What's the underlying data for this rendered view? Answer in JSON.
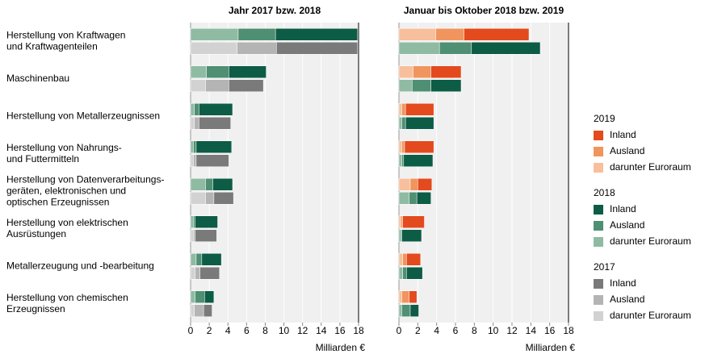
{
  "chart_data": {
    "type": "bar",
    "orientation": "horizontal",
    "stacked": true,
    "xlabel": "Milliarden €",
    "categories": [
      [
        "Herstellung von Kraftwagen",
        "und Kraftwagenteilen"
      ],
      [
        "Maschinenbau"
      ],
      [
        "Herstellung von Metallerzeugnissen"
      ],
      [
        "Herstellung von Nahrungs-",
        "und Futtermitteln"
      ],
      [
        "Herstellung von Datenverarbeitungs-",
        "geräten, elektronischen und",
        "optischen Erzeugnissen"
      ],
      [
        "Herstellung von elektrischen",
        "Ausrüstungen"
      ],
      [
        "Metallerzeugung und -bearbeitung"
      ],
      [
        "Herstellung von chemischen",
        "Erzeugnissen"
      ]
    ],
    "panels": [
      {
        "title": "Jahr 2017 bzw. 2018",
        "xlim": [
          0,
          18
        ],
        "xticks": [
          0,
          2,
          4,
          6,
          8,
          10,
          12,
          14,
          16,
          18
        ],
        "rows": [
          {
            "series": [
              {
                "name": "darunter Euroraum",
                "color": "#8fbba2",
                "values": [
                  5.1,
                  1.7,
                  0.4,
                  0.3,
                  1.6,
                  0.3,
                  0.6,
                  0.5
                ]
              },
              {
                "name": "Ausland",
                "color": "#4f8f73",
                "values": [
                  4.0,
                  2.4,
                  0.5,
                  0.3,
                  0.8,
                  0.2,
                  0.6,
                  1.0
                ]
              },
              {
                "name": "Inland",
                "color": "#0d5c46",
                "values": [
                  8.8,
                  4.0,
                  3.6,
                  3.8,
                  2.1,
                  2.4,
                  2.1,
                  1.0
                ]
              }
            ]
          },
          {
            "series": [
              {
                "name": "darunter Euroraum",
                "color": "#d2d2d2",
                "values": [
                  5.0,
                  1.6,
                  0.4,
                  0.3,
                  1.6,
                  0.3,
                  0.5,
                  0.4
                ]
              },
              {
                "name": "Ausland",
                "color": "#b4b4b4",
                "values": [
                  4.2,
                  2.5,
                  0.5,
                  0.3,
                  0.9,
                  0.2,
                  0.5,
                  1.0
                ]
              },
              {
                "name": "Inland",
                "color": "#7a7a7a",
                "values": [
                  8.7,
                  3.7,
                  3.4,
                  3.5,
                  2.1,
                  2.3,
                  2.1,
                  0.9
                ]
              }
            ]
          }
        ]
      },
      {
        "title": "Januar bis Oktober 2018 bzw. 2019",
        "xlim": [
          0,
          18
        ],
        "xticks": [
          0,
          2,
          4,
          6,
          8,
          10,
          12,
          14,
          16,
          18
        ],
        "rows": [
          {
            "series": [
              {
                "name": "darunter Euroraum",
                "color": "#f7bf9b",
                "values": [
                  3.9,
                  1.5,
                  0.3,
                  0.3,
                  1.2,
                  0.2,
                  0.4,
                  0.3
                ]
              },
              {
                "name": "Ausland",
                "color": "#f0955e",
                "values": [
                  3.0,
                  1.9,
                  0.4,
                  0.3,
                  0.8,
                  0.2,
                  0.4,
                  0.8
                ]
              },
              {
                "name": "Inland",
                "color": "#e34a1d",
                "values": [
                  6.9,
                  3.2,
                  3.0,
                  3.1,
                  1.5,
                  2.3,
                  1.5,
                  0.8
                ]
              }
            ]
          },
          {
            "series": [
              {
                "name": "darunter Euroraum",
                "color": "#8fbba2",
                "values": [
                  4.3,
                  1.4,
                  0.3,
                  0.3,
                  1.1,
                  0.2,
                  0.4,
                  0.3
                ]
              },
              {
                "name": "Ausland",
                "color": "#4f8f73",
                "values": [
                  3.4,
                  2.0,
                  0.4,
                  0.2,
                  0.8,
                  0.1,
                  0.4,
                  0.9
                ]
              },
              {
                "name": "Inland",
                "color": "#0d5c46",
                "values": [
                  7.3,
                  3.2,
                  3.0,
                  3.1,
                  1.5,
                  2.1,
                  1.7,
                  0.9
                ]
              }
            ]
          }
        ]
      }
    ],
    "legend": [
      {
        "title": "2019",
        "entries": [
          {
            "name": "Inland",
            "color": "#e34a1d"
          },
          {
            "name": "Ausland",
            "color": "#f0955e"
          },
          {
            "name": "darunter Euroraum",
            "color": "#f7bf9b"
          }
        ]
      },
      {
        "title": "2018",
        "entries": [
          {
            "name": "Inland",
            "color": "#0d5c46"
          },
          {
            "name": "Ausland",
            "color": "#4f8f73"
          },
          {
            "name": "darunter Euroraum",
            "color": "#8fbba2"
          }
        ]
      },
      {
        "title": "2017",
        "entries": [
          {
            "name": "Inland",
            "color": "#7a7a7a"
          },
          {
            "name": "Ausland",
            "color": "#b4b4b4"
          },
          {
            "name": "darunter Euroraum",
            "color": "#d2d2d2"
          }
        ]
      }
    ]
  }
}
